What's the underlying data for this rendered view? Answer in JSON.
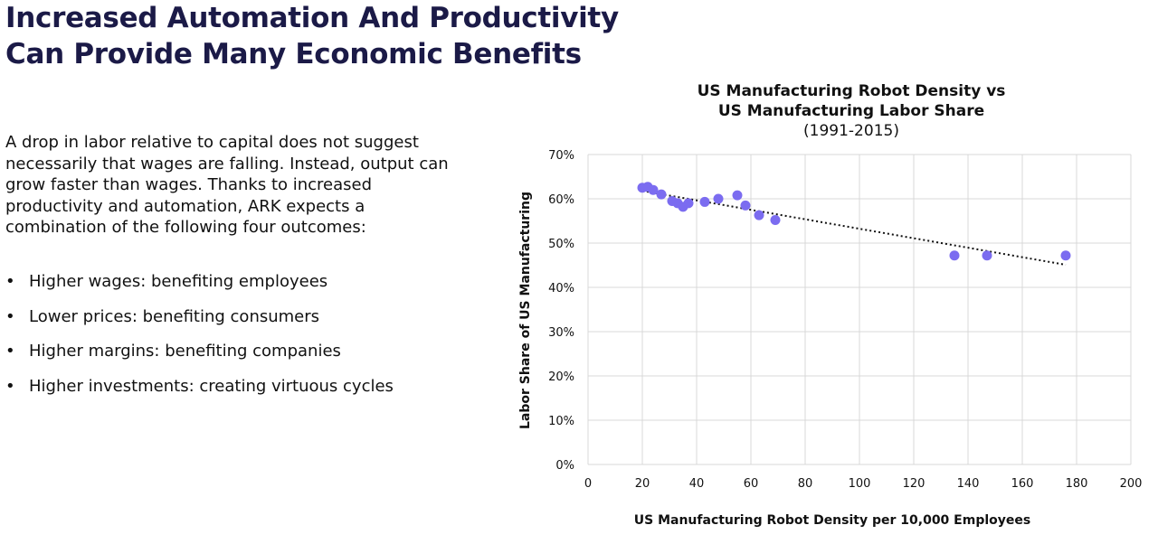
{
  "slide": {
    "title_line1": "Increased Automation And Productivity",
    "title_line2": "Can Provide Many Economic Benefits",
    "paragraph": "A drop in labor relative to capital does not suggest necessarily that wages are falling. Instead, output can grow faster than wages. Thanks to increased productivity and automation, ARK expects a combination of the following four outcomes:",
    "bullet_glyph": "•",
    "bullets": [
      "Higher wages: benefiting employees",
      "Lower prices: benefiting consumers",
      "Higher margins: benefiting companies",
      "Higher investments: creating virtuous cycles"
    ]
  },
  "colors": {
    "title": "#1b1a47",
    "point": "#7b6cf0",
    "grid": "#d9d9d9",
    "trend": "#111111"
  },
  "chart_data": {
    "type": "scatter",
    "title_line1": "US Manufacturing Robot Density vs",
    "title_line2": "US Manufacturing Labor Share",
    "subtitle": "(1991-2015)",
    "xlabel": "US Manufacturing Robot Density per 10,000 Employees",
    "ylabel": "Labor Share of US Manufacturing",
    "xlim": [
      0,
      200
    ],
    "ylim": [
      0,
      0.7
    ],
    "xticks": [
      0,
      20,
      40,
      60,
      80,
      100,
      120,
      140,
      160,
      180,
      200
    ],
    "xtick_labels": [
      "0",
      "20",
      "40",
      "60",
      "80",
      "100",
      "120",
      "140",
      "160",
      "180",
      "200"
    ],
    "yticks": [
      0,
      0.1,
      0.2,
      0.3,
      0.4,
      0.5,
      0.6,
      0.7
    ],
    "ytick_labels": [
      "0%",
      "10%",
      "20%",
      "30%",
      "40%",
      "50%",
      "60%",
      "70%"
    ],
    "grid": true,
    "points": [
      {
        "x": 20,
        "y": 0.625
      },
      {
        "x": 22,
        "y": 0.627
      },
      {
        "x": 24,
        "y": 0.62
      },
      {
        "x": 27,
        "y": 0.61
      },
      {
        "x": 31,
        "y": 0.595
      },
      {
        "x": 33,
        "y": 0.59
      },
      {
        "x": 35,
        "y": 0.582
      },
      {
        "x": 37,
        "y": 0.59
      },
      {
        "x": 43,
        "y": 0.593
      },
      {
        "x": 48,
        "y": 0.6
      },
      {
        "x": 55,
        "y": 0.608
      },
      {
        "x": 58,
        "y": 0.585
      },
      {
        "x": 63,
        "y": 0.563
      },
      {
        "x": 69,
        "y": 0.552
      },
      {
        "x": 135,
        "y": 0.472
      },
      {
        "x": 147,
        "y": 0.472
      },
      {
        "x": 176,
        "y": 0.472
      }
    ],
    "trendline": {
      "x": [
        20,
        176
      ],
      "y": [
        0.618,
        0.451
      ]
    }
  }
}
